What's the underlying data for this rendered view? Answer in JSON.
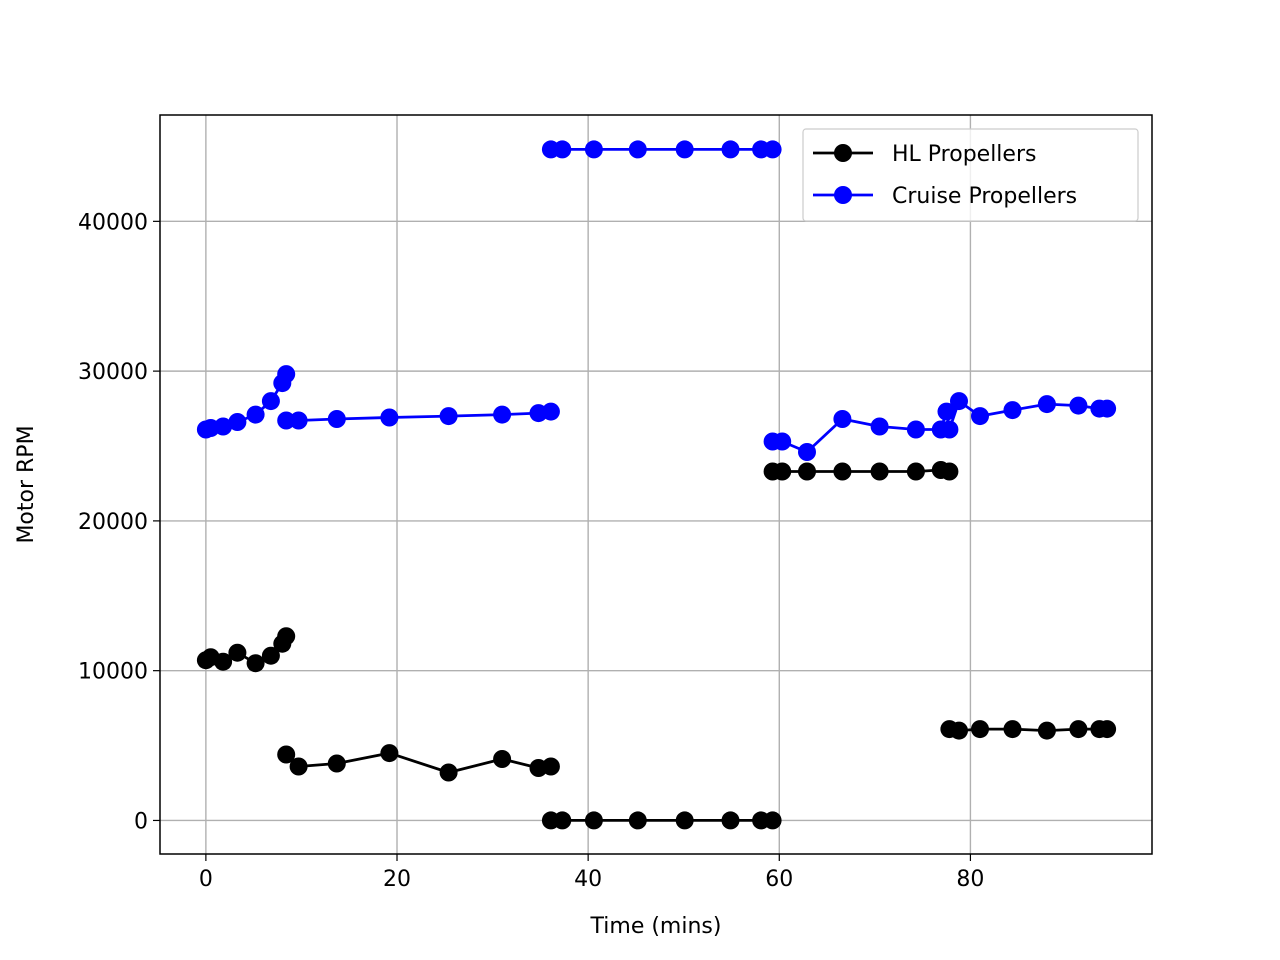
{
  "chart_data": {
    "type": "line",
    "title": "",
    "xlabel": "Time (mins)",
    "ylabel": "Motor RPM",
    "xlim": [
      -4.8,
      99.0
    ],
    "ylim": [
      -2240,
      47100
    ],
    "xticks": [
      0,
      20,
      40,
      60,
      80
    ],
    "yticks": [
      0,
      10000,
      20000,
      30000,
      40000
    ],
    "grid": true,
    "legend_position": "top-right",
    "series": [
      {
        "name": "HL Propellers",
        "color": "#000000",
        "segments": [
          [
            [
              0,
              10700
            ],
            [
              0.5,
              10900
            ],
            [
              1.8,
              10600
            ],
            [
              3.3,
              11200
            ],
            [
              5.2,
              10500
            ],
            [
              6.8,
              11000
            ],
            [
              8.0,
              11800
            ],
            [
              8.4,
              12300
            ]
          ],
          [
            [
              8.4,
              4400
            ],
            [
              9.7,
              3600
            ],
            [
              13.7,
              3800
            ],
            [
              19.2,
              4500
            ],
            [
              25.4,
              3200
            ],
            [
              31.0,
              4100
            ],
            [
              34.8,
              3500
            ],
            [
              36.1,
              3600
            ]
          ],
          [
            [
              36.1,
              0
            ],
            [
              37.3,
              0
            ],
            [
              40.6,
              0
            ],
            [
              45.2,
              0
            ],
            [
              50.1,
              0
            ],
            [
              54.9,
              0
            ],
            [
              58.1,
              0
            ],
            [
              59.3,
              0
            ]
          ],
          [
            [
              59.3,
              23300
            ],
            [
              60.3,
              23300
            ],
            [
              62.9,
              23300
            ],
            [
              66.6,
              23300
            ],
            [
              70.5,
              23300
            ],
            [
              74.3,
              23300
            ],
            [
              76.9,
              23400
            ],
            [
              77.8,
              23300
            ]
          ],
          [
            [
              77.8,
              6100
            ],
            [
              78.8,
              6000
            ],
            [
              81.0,
              6100
            ],
            [
              84.4,
              6100
            ],
            [
              88.0,
              6000
            ],
            [
              91.3,
              6100
            ],
            [
              93.5,
              6100
            ],
            [
              94.3,
              6100
            ]
          ]
        ]
      },
      {
        "name": "Cruise Propellers",
        "color": "#0000ff",
        "segments": [
          [
            [
              0,
              26100
            ],
            [
              0.5,
              26200
            ],
            [
              1.8,
              26300
            ],
            [
              3.3,
              26600
            ],
            [
              5.2,
              27100
            ],
            [
              6.8,
              28000
            ],
            [
              8.0,
              29200
            ],
            [
              8.4,
              29800
            ]
          ],
          [
            [
              8.4,
              26700
            ],
            [
              9.7,
              26700
            ],
            [
              13.7,
              26800
            ],
            [
              19.2,
              26900
            ],
            [
              25.4,
              27000
            ],
            [
              31.0,
              27100
            ],
            [
              34.8,
              27200
            ],
            [
              36.1,
              27300
            ]
          ],
          [
            [
              36.1,
              44800
            ],
            [
              37.3,
              44800
            ],
            [
              40.6,
              44800
            ],
            [
              45.2,
              44800
            ],
            [
              50.1,
              44800
            ],
            [
              54.9,
              44800
            ],
            [
              58.1,
              44800
            ],
            [
              59.3,
              44800
            ]
          ],
          [
            [
              59.3,
              25300
            ],
            [
              60.3,
              25300
            ],
            [
              62.9,
              24600
            ],
            [
              66.6,
              26800
            ],
            [
              70.5,
              26300
            ],
            [
              74.3,
              26100
            ],
            [
              76.9,
              26100
            ],
            [
              77.5,
              27300
            ],
            [
              77.8,
              26100
            ],
            [
              78.8,
              28000
            ],
            [
              81.0,
              27000
            ],
            [
              84.4,
              27400
            ],
            [
              88.0,
              27800
            ],
            [
              91.3,
              27700
            ],
            [
              93.5,
              27500
            ],
            [
              94.3,
              27500
            ]
          ]
        ]
      }
    ]
  }
}
